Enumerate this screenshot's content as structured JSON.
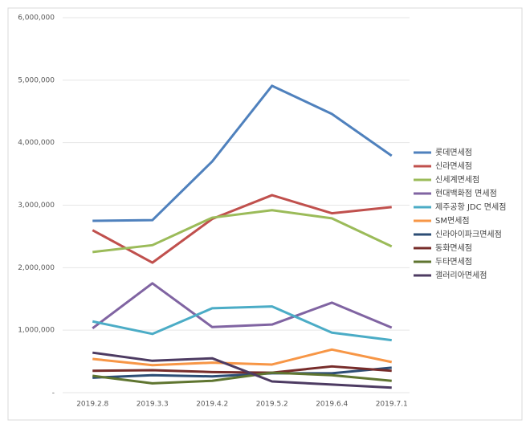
{
  "chart_data": {
    "type": "line",
    "categories": [
      "2019.2.8",
      "2019.3.3",
      "2019.4.2",
      "2019.5.2",
      "2019.6.4",
      "2019.7.1"
    ],
    "ylim": [
      0,
      6000000
    ],
    "yticks": [
      {
        "value": 0,
        "label": "-"
      },
      {
        "value": 1000000,
        "label": "1,000,000"
      },
      {
        "value": 2000000,
        "label": "2,000,000"
      },
      {
        "value": 3000000,
        "label": "3,000,000"
      },
      {
        "value": 4000000,
        "label": "4,000,000"
      },
      {
        "value": 5000000,
        "label": "5,000,000"
      },
      {
        "value": 6000000,
        "label": "6,000,000"
      }
    ],
    "grid": true,
    "legend": "right",
    "series": [
      {
        "name": "롯데면세점",
        "color": "#4f81bd",
        "values": [
          2750000,
          2760000,
          3700000,
          4910000,
          4460000,
          3790000
        ]
      },
      {
        "name": "신라면세점",
        "color": "#c0504d",
        "values": [
          2600000,
          2080000,
          2780000,
          3160000,
          2870000,
          2970000
        ]
      },
      {
        "name": "신세계면세점",
        "color": "#9bbb59",
        "values": [
          2250000,
          2360000,
          2800000,
          2920000,
          2790000,
          2340000
        ]
      },
      {
        "name": "현대백화점 면세점",
        "color": "#8064a2",
        "values": [
          1030000,
          1750000,
          1050000,
          1090000,
          1440000,
          1040000
        ]
      },
      {
        "name": "제주공항 JDC 면세점",
        "color": "#4bacc6",
        "values": [
          1140000,
          940000,
          1350000,
          1380000,
          960000,
          840000
        ]
      },
      {
        "name": "SM면세점",
        "color": "#f79646",
        "values": [
          540000,
          440000,
          480000,
          450000,
          690000,
          490000
        ]
      },
      {
        "name": "신라아이파크면세점",
        "color": "#2c4d75",
        "values": [
          240000,
          280000,
          260000,
          310000,
          310000,
          400000
        ]
      },
      {
        "name": "동화면세점",
        "color": "#772c2a",
        "values": [
          350000,
          360000,
          330000,
          320000,
          420000,
          350000
        ]
      },
      {
        "name": "두타면세점",
        "color": "#5f7530",
        "values": [
          270000,
          150000,
          190000,
          320000,
          280000,
          190000
        ]
      },
      {
        "name": "갤러리아면세점",
        "color": "#4d3b62",
        "values": [
          640000,
          510000,
          550000,
          180000,
          130000,
          80000
        ]
      }
    ]
  }
}
